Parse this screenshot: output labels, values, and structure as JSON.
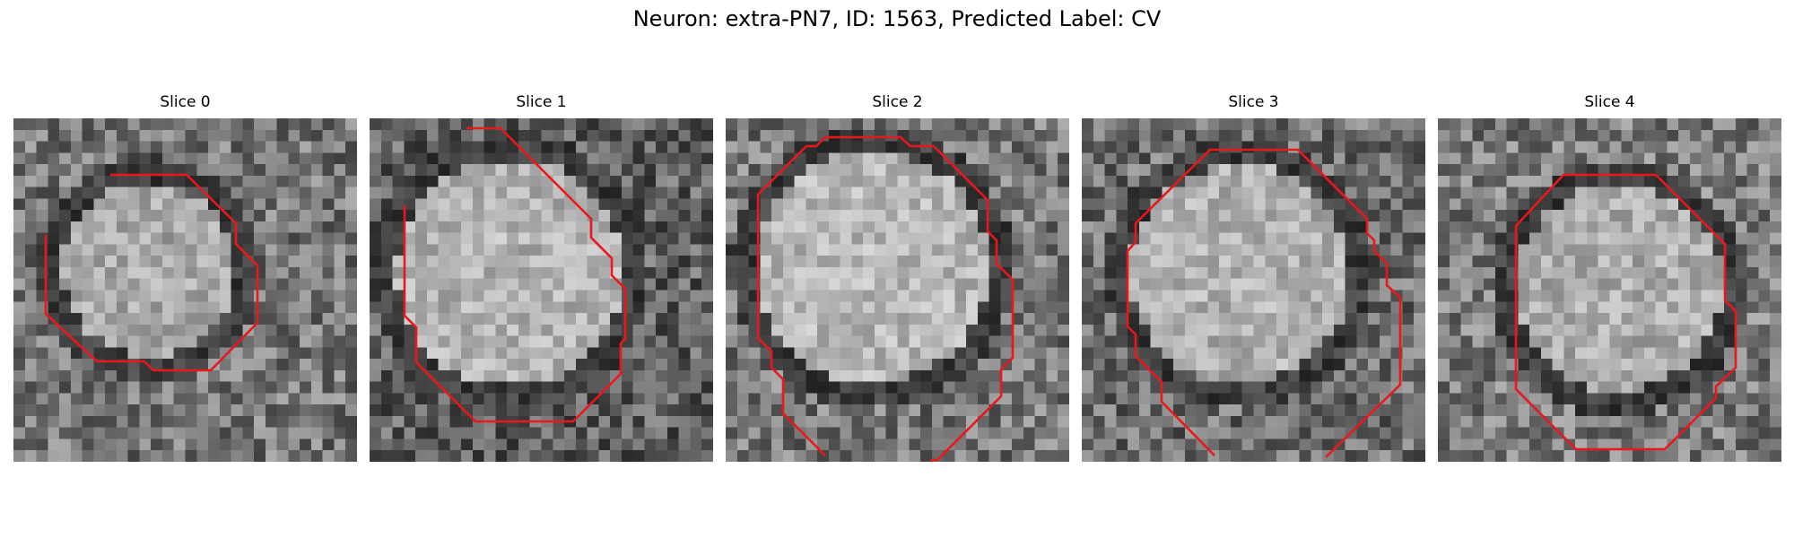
{
  "figure": {
    "title": "Neuron: extra-PN7, ID: 1563, Predicted Label: CV",
    "contour_color": "#e8181c"
  },
  "slices": [
    {
      "title": "Slice 0"
    },
    {
      "title": "Slice 1"
    },
    {
      "title": "Slice 2"
    },
    {
      "title": "Slice 3"
    },
    {
      "title": "Slice 4"
    }
  ]
}
